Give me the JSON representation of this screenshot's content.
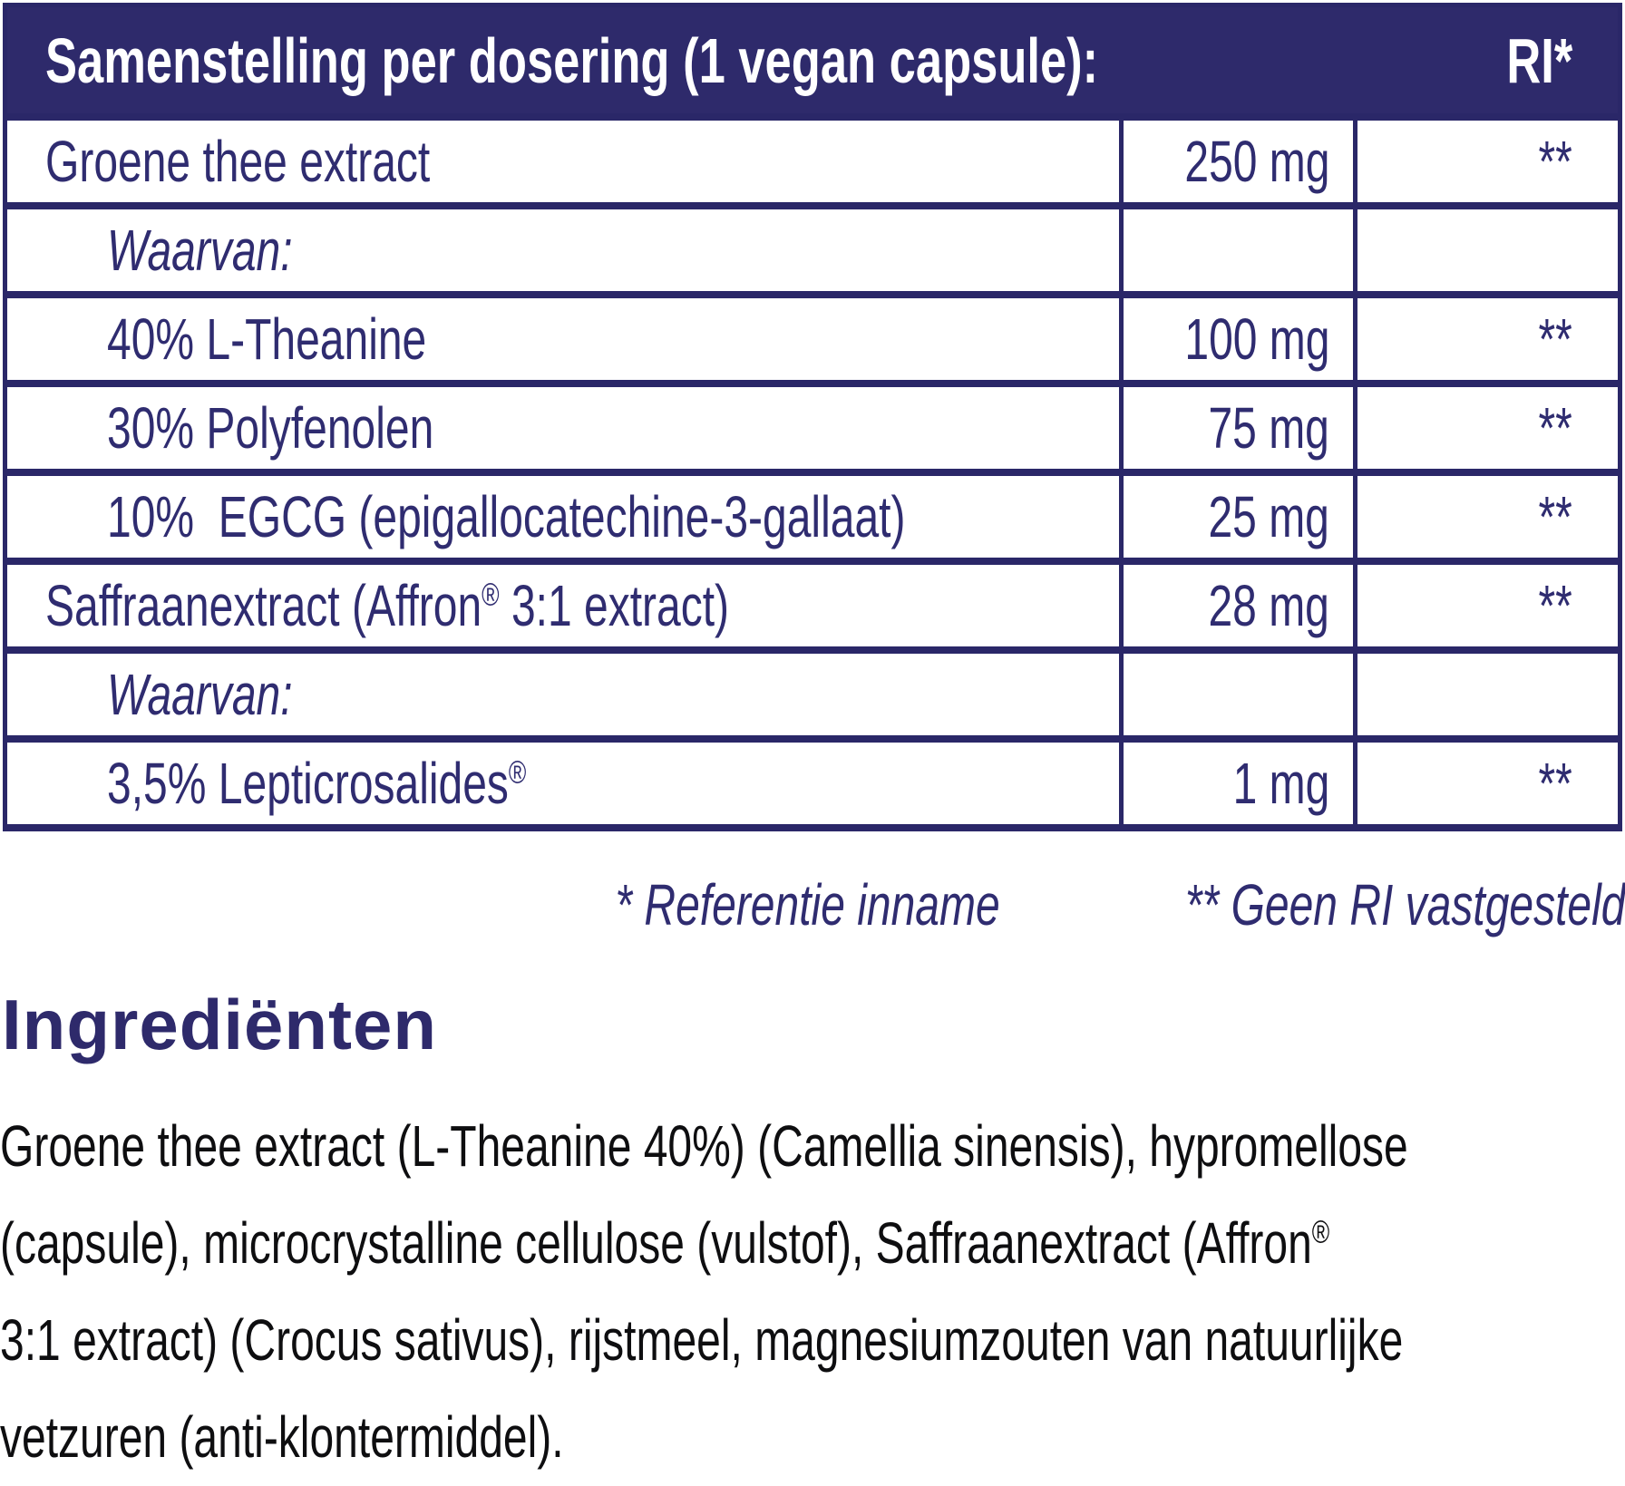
{
  "colors": {
    "navy_header_bg": "#2e2a6b",
    "navy_border": "#2a2768",
    "navy_text": "#2f2c70",
    "body_text": "#0e0e10",
    "background": "#ffffff"
  },
  "table": {
    "header": {
      "title": "Samenstelling per dosering (1 vegan capsule):",
      "ri_label": "RI*"
    },
    "rows": [
      {
        "name": "Groene thee extract",
        "amount": "250 mg",
        "ri": "**"
      },
      {
        "name": "Waarvan:",
        "amount": "",
        "ri": ""
      },
      {
        "name": "40% L-Theanine",
        "amount": "100 mg",
        "ri": "**"
      },
      {
        "name": "30% Polyfenolen",
        "amount": "75 mg",
        "ri": "**"
      },
      {
        "name": "10%  EGCG (epigallocatechine-3-gallaat)",
        "amount": "25 mg",
        "ri": "**"
      },
      {
        "name": "Saffraanextract (Affron® 3:1 extract)",
        "amount": "28 mg",
        "ri": "**"
      },
      {
        "name": "Waarvan:",
        "amount": "",
        "ri": ""
      },
      {
        "name": "3,5% Lepticrosalides®",
        "amount": "1 mg",
        "ri": "**"
      }
    ]
  },
  "footnote": {
    "reference": "* Referentie inname",
    "no_ri": "** Geen RI vastgesteld"
  },
  "ingredients": {
    "heading": "Ingrediënten",
    "lines": [
      "Groene thee extract (L-Theanine 40%) (Camellia sinensis), hypromellose",
      "(capsule), microcrystalline cellulose (vulstof), Saffraanextract (Affron®",
      "3:1 extract) (Crocus sativus), rijstmeel, magnesiumzouten van natuurlijke",
      "vetzuren (anti-klontermiddel)."
    ]
  }
}
